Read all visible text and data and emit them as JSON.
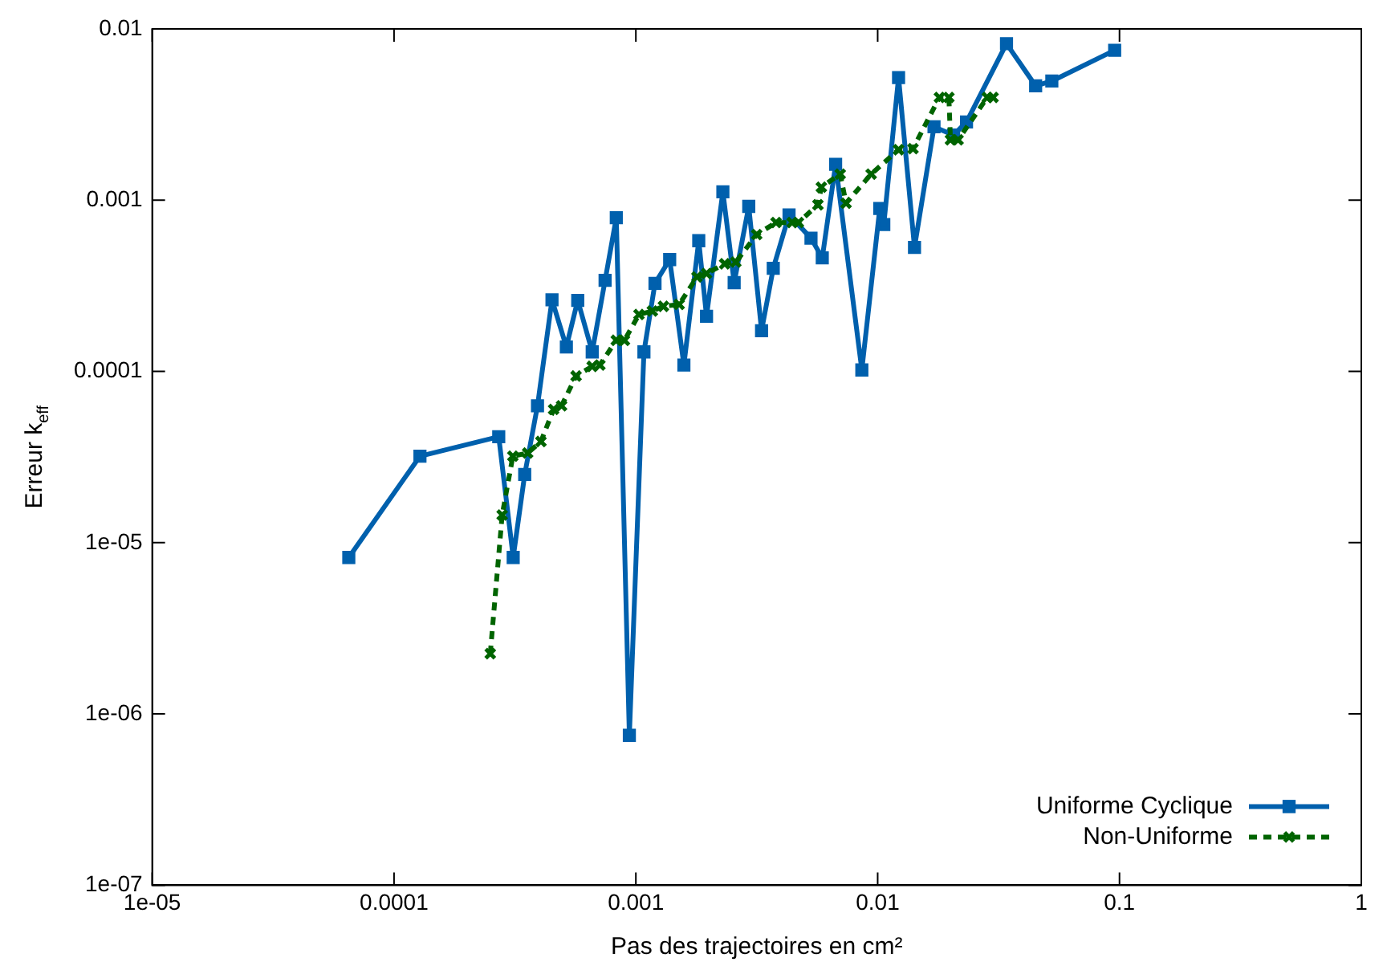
{
  "chart_data": {
    "type": "line",
    "xlabel": "Pas des trajectoires en cm²",
    "ylabel": "Erreur k$_{eff}$",
    "log": "xy",
    "grid": false,
    "legend": "bottom right",
    "xlim": [
      1e-05,
      1
    ],
    "xticks": [
      {
        "value": 1e-05,
        "label": "1e-05"
      },
      0.0001,
      0.001,
      0.01,
      0.1,
      1
    ],
    "ylim": [
      1e-07,
      0.01
    ],
    "yticks": [
      {
        "value": 1e-07,
        "label": "1e-07"
      },
      {
        "value": 1e-06,
        "label": "1e-06"
      },
      {
        "value": 1e-05,
        "label": "1e-05"
      },
      0.0001,
      0.001,
      0.01
    ],
    "series": [
      {
        "name": "Uniforme Cyclique",
        "color": "#0060ad",
        "marker": "square",
        "line_style": "solid",
        "x": [
          6.5e-05,
          0.000128,
          0.000271,
          0.000311,
          0.000347,
          0.000392,
          0.00045,
          0.000516,
          0.000575,
          0.00066,
          0.000746,
          0.00083,
          0.00094,
          0.00108,
          0.0012,
          0.00138,
          0.00158,
          0.00182,
          0.00196,
          0.00229,
          0.00255,
          0.00293,
          0.00331,
          0.0037,
          0.0043,
          0.0053,
          0.0059,
          0.0067,
          0.0086,
          0.0102,
          0.0106,
          0.0122,
          0.0142,
          0.0171,
          0.0206,
          0.0233,
          0.0341,
          0.045,
          0.0525,
          0.0955
        ],
        "values": [
          8.2e-06,
          3.2e-05,
          4.16e-05,
          8.2e-06,
          2.5e-05,
          6.3e-05,
          0.000262,
          0.000139,
          0.00026,
          0.00013,
          0.00034,
          0.00079,
          7.5e-07,
          0.00013,
          0.000327,
          0.00045,
          0.000109,
          0.00058,
          0.00021,
          0.00112,
          0.00033,
          0.00092,
          0.000173,
          0.0004,
          0.00082,
          0.0006,
          0.00046,
          0.00162,
          0.000102,
          0.000895,
          0.00072,
          0.0052,
          0.00053,
          0.00268,
          0.0024,
          0.00286,
          0.0082,
          0.00465,
          0.00496,
          0.0075
        ]
      },
      {
        "name": "Non-Uniforme",
        "color": "#006400",
        "marker": "cross",
        "line_style": "dashed",
        "x": [
          0.00025,
          0.00028,
          0.00031,
          0.000357,
          0.000405,
          0.000457,
          0.000493,
          0.000566,
          0.00066,
          0.00071,
          0.00083,
          0.000897,
          0.00103,
          0.00117,
          0.0013,
          0.00151,
          0.00179,
          0.00196,
          0.00233,
          0.00259,
          0.00316,
          0.0038,
          0.00443,
          0.0047,
          0.00566,
          0.00585,
          0.007,
          0.0074,
          0.0094,
          0.0122,
          0.014,
          0.018,
          0.0197,
          0.02,
          0.0215,
          0.0284,
          0.03
        ],
        "values": [
          2.25e-06,
          1.45e-05,
          3.2e-05,
          3.34e-05,
          3.9e-05,
          6e-05,
          6.3e-05,
          9.4e-05,
          0.000107,
          0.000109,
          0.000152,
          0.000152,
          0.000215,
          0.000225,
          0.00024,
          0.000246,
          0.000356,
          0.000373,
          0.000425,
          0.000435,
          0.00063,
          0.00074,
          0.00074,
          0.00074,
          0.00094,
          0.00119,
          0.00142,
          0.00096,
          0.00142,
          0.00197,
          0.002,
          0.00398,
          0.00398,
          0.00225,
          0.00225,
          0.00398,
          0.00398
        ]
      }
    ]
  }
}
